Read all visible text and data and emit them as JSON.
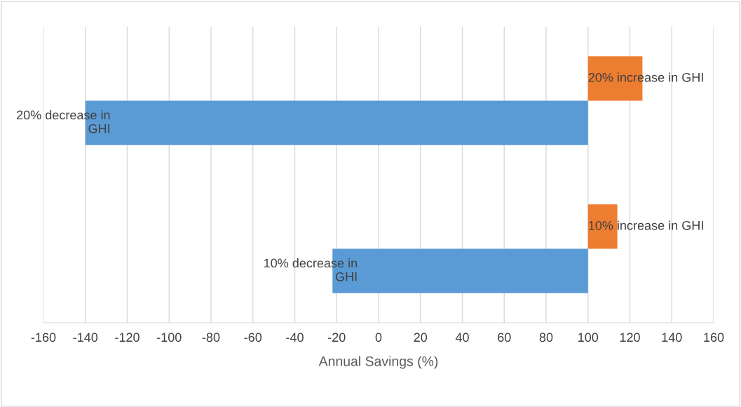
{
  "chart_data": {
    "type": "bar",
    "orientation": "horizontal",
    "xlabel": "Annual Savings (%)",
    "categories": [
      null,
      null
    ],
    "series": [
      {
        "color": "#5b9bd5",
        "base": [
          100,
          100
        ],
        "values": [
          -240,
          -122
        ]
      },
      {
        "color": "#ed7d31",
        "base": [
          100,
          100
        ],
        "values": [
          26,
          14
        ]
      }
    ],
    "annotations": [
      "20% decrease in GHI",
      "10% decrease in GHI",
      "20% increase in GHI",
      "10% increase in GHI"
    ],
    "xlim": [
      -160,
      160
    ],
    "xticks": [
      -160,
      -140,
      -120,
      -100,
      -80,
      -60,
      -40,
      -20,
      0,
      20,
      40,
      60,
      80,
      100,
      120,
      140,
      160
    ],
    "grid": "x",
    "legend": false
  }
}
